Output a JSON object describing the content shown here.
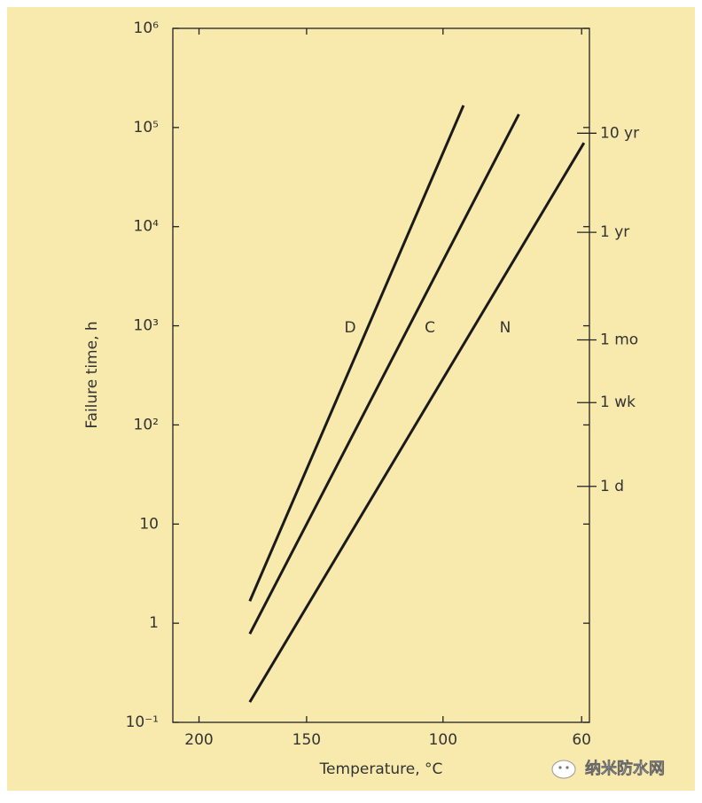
{
  "chart_data": {
    "type": "line",
    "x_label": "Temperature, °C",
    "y_label": "Failure time, h",
    "xscale": "inverse-kelvin",
    "yscale": "log",
    "xlim": [
      214,
      58
    ],
    "xticks": [
      200,
      150,
      100,
      60
    ],
    "ylim": [
      0.1,
      1000000
    ],
    "yticks": [
      {
        "value": 0.1,
        "label": "10⁻¹"
      },
      1,
      10,
      {
        "value": 100,
        "label": "10²"
      },
      {
        "value": 1000,
        "label": "10³"
      },
      {
        "value": 10000,
        "label": "10⁴"
      },
      {
        "value": 100000,
        "label": "10⁵"
      },
      {
        "value": 1000000,
        "label": "10⁶"
      }
    ],
    "y2lim": [
      0.1,
      1000000
    ],
    "y2ticks": [
      {
        "value": 24,
        "label": "1 d"
      },
      {
        "value": 168,
        "label": "1 wk"
      },
      {
        "value": 720,
        "label": "1 mo"
      },
      {
        "value": 8760,
        "label": "1 yr"
      },
      {
        "value": 87600,
        "label": "10 yr"
      }
    ],
    "series": [
      {
        "name": "D",
        "color": "#1a1a1a",
        "x": [
          175,
          93.5
        ],
        "values": [
          1.67,
          167000
        ]
      },
      {
        "name": "C",
        "color": "#1a1a1a",
        "x": [
          175,
          77
        ],
        "values": [
          0.78,
          136000
        ]
      },
      {
        "name": "N",
        "color": "#1a1a1a",
        "x": [
          175,
          59.4
        ],
        "values": [
          0.16,
          70000
        ]
      }
    ],
    "watermark": "纳米防水网"
  }
}
